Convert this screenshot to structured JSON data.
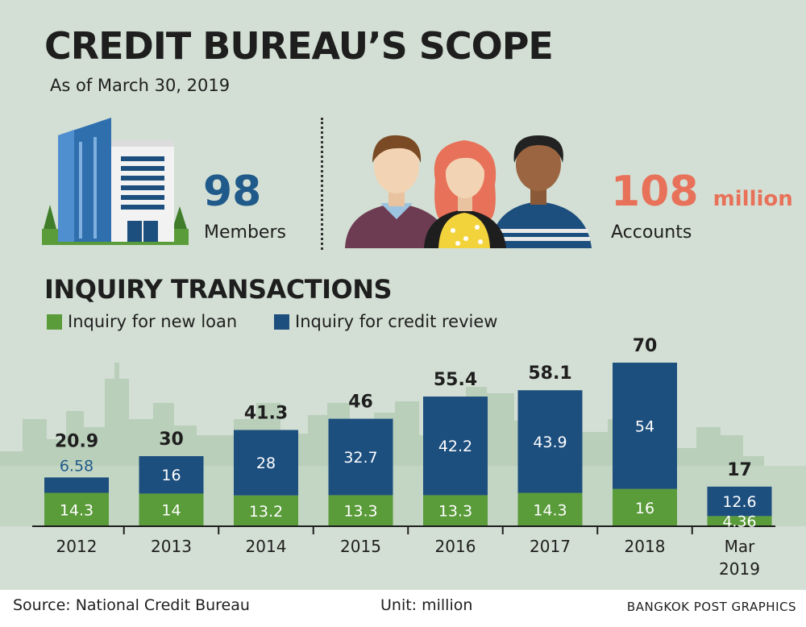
{
  "header": {
    "title": "CREDIT BUREAU’S SCOPE",
    "subtitle": "As of March 30, 2019"
  },
  "stats": {
    "members_value": "98",
    "members_label": "Members",
    "accounts_value": "108",
    "accounts_unit": "million",
    "accounts_label": "Accounts"
  },
  "section_title": "INQUIRY TRANSACTIONS",
  "legend": {
    "new_loan": "Inquiry for new loan",
    "credit_review": "Inquiry for credit review"
  },
  "footer": {
    "source": "Source: National Credit Bureau",
    "unit": "Unit: million",
    "credit": "BANGKOK POST GRAPHICS"
  },
  "colors": {
    "background": "#d3dfd4",
    "new_loan": "#5a9b3a",
    "credit_review": "#1c4e7e",
    "accent_orange": "#e8715a",
    "accent_blue": "#1f5a8a",
    "skyline": "#b9cfba"
  },
  "icons": [
    "office-building-icon",
    "people-group-icon"
  ],
  "chart_data": {
    "type": "bar",
    "stacked": true,
    "title": "INQUIRY TRANSACTIONS",
    "categories": [
      "2012",
      "2013",
      "2014",
      "2015",
      "2016",
      "2017",
      "2018",
      "Mar 2019"
    ],
    "series": [
      {
        "name": "Inquiry for new loan",
        "values": [
          14.3,
          14,
          13.2,
          13.3,
          13.3,
          14.3,
          16,
          4.36
        ]
      },
      {
        "name": "Inquiry for credit review",
        "values": [
          6.58,
          16,
          28,
          32.7,
          42.2,
          43.9,
          54,
          12.6
        ]
      }
    ],
    "totals": [
      20.9,
      30,
      41.3,
      46,
      55.4,
      58.1,
      70,
      17
    ],
    "ylim": [
      0,
      70
    ],
    "xlabel": "",
    "ylabel": "",
    "grid": false,
    "legend_position": "top-left",
    "unit": "million"
  }
}
